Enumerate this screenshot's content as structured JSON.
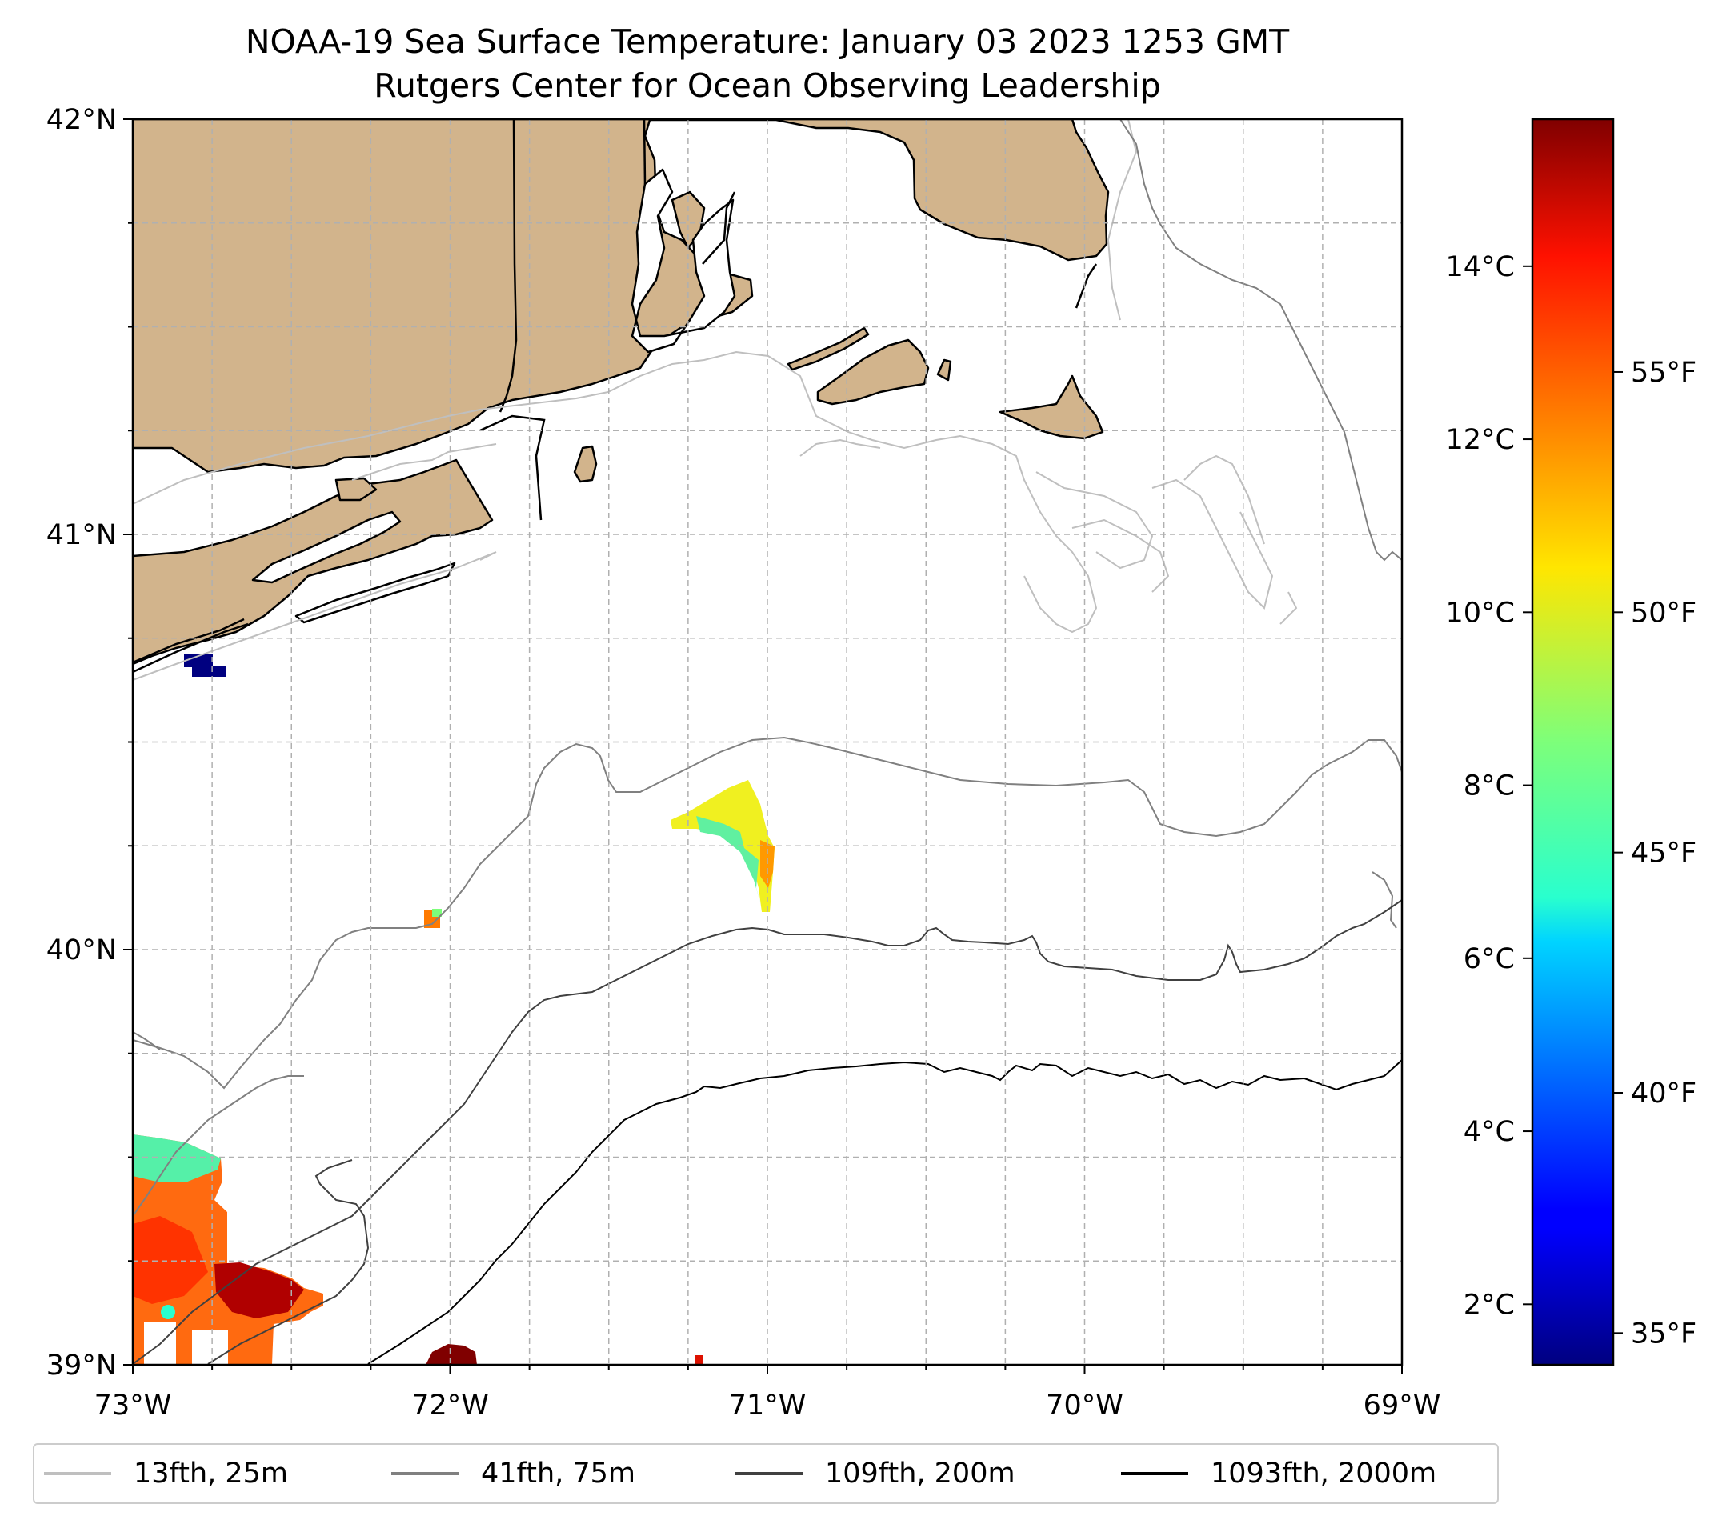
{
  "title": "NOAA-19 Sea Surface Temperature: January 03 2023 1253 GMT",
  "subtitle": "Rutgers Center for Ocean Observing Leadership",
  "map": {
    "extent": {
      "lon": [
        -73,
        -69
      ],
      "lat": [
        39,
        42
      ]
    },
    "x_ticks": [
      {
        "lon": -73,
        "label": "73°W"
      },
      {
        "lon": -72,
        "label": "72°W"
      },
      {
        "lon": -71,
        "label": "71°W"
      },
      {
        "lon": -70,
        "label": "70°W"
      },
      {
        "lon": -69,
        "label": "69°W"
      }
    ],
    "y_ticks": [
      {
        "lat": 39,
        "label": "39°N"
      },
      {
        "lat": 40,
        "label": "40°N"
      },
      {
        "lat": 41,
        "label": "41°N"
      },
      {
        "lat": 42,
        "label": "42°N"
      }
    ],
    "gridlines": true,
    "land_color": "#d2b48c",
    "coast_color": "#000000"
  },
  "colorbar": {
    "colormap": "jet",
    "range_c": [
      1.3,
      15.7
    ],
    "celsius_ticks": [
      {
        "value": 2,
        "label": "2°C"
      },
      {
        "value": 4,
        "label": "4°C"
      },
      {
        "value": 6,
        "label": "6°C"
      },
      {
        "value": 8,
        "label": "8°C"
      },
      {
        "value": 10,
        "label": "10°C"
      },
      {
        "value": 12,
        "label": "12°C"
      },
      {
        "value": 14,
        "label": "14°C"
      }
    ],
    "fahrenheit_ticks": [
      {
        "value": 35,
        "label": "35°F"
      },
      {
        "value": 40,
        "label": "40°F"
      },
      {
        "value": 45,
        "label": "45°F"
      },
      {
        "value": 50,
        "label": "50°F"
      },
      {
        "value": 55,
        "label": "55°F"
      }
    ]
  },
  "legend": {
    "location": "bottom, below map",
    "items": [
      {
        "label": "13fth, 25m",
        "color": "#bfbfbf"
      },
      {
        "label": "41fth, 75m",
        "color": "#808080"
      },
      {
        "label": "109fth, 200m",
        "color": "#404040"
      },
      {
        "label": "1093fth, 2000m",
        "color": "#000000"
      }
    ]
  }
}
